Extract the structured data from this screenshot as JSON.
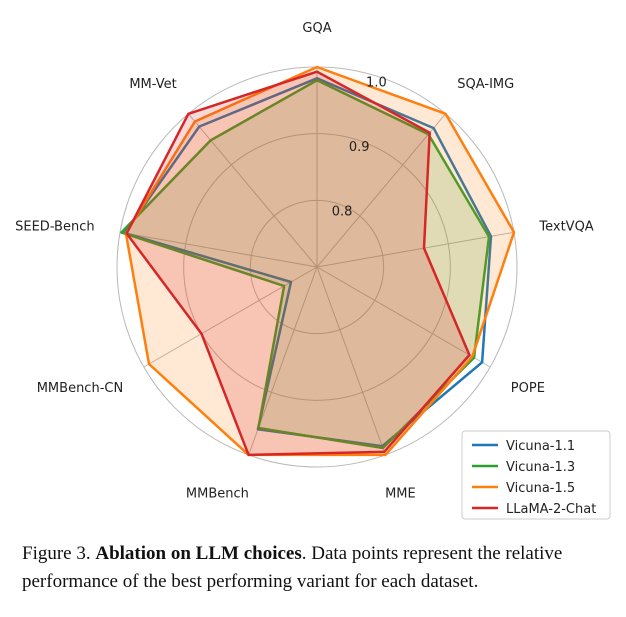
{
  "chart_data": {
    "type": "radar",
    "axes": [
      "GQA",
      "SQA-IMG",
      "TextVQA",
      "POPE",
      "MME",
      "MMBench",
      "MMBench-CN",
      "SEED-Bench",
      "MM-Vet"
    ],
    "rlim": [
      0.7,
      1.0
    ],
    "ticks": [
      "0.8",
      "0.9",
      "1.0"
    ],
    "tick_values": [
      0.8,
      0.9,
      1.0
    ],
    "grid": true,
    "legend_position": "lower-right",
    "series": [
      {
        "name": "Vicuna-1.1",
        "color": "#1f77b4",
        "values": [
          0.983,
          0.972,
          0.965,
          0.986,
          0.986,
          0.959,
          0.745,
          0.993,
          0.975
        ],
        "fill": false
      },
      {
        "name": "Vicuna-1.3",
        "color": "#2ca02c",
        "values": [
          0.98,
          0.96,
          0.962,
          0.972,
          0.989,
          0.957,
          0.757,
          0.998,
          0.948
        ],
        "fill": true
      },
      {
        "name": "Vicuna-1.5",
        "color": "#ff7f0e",
        "values": [
          1.0,
          1.0,
          1.0,
          0.969,
          1.0,
          1.0,
          0.991,
          0.991,
          0.985
        ],
        "fill": true
      },
      {
        "name": "LLaMA-2-Chat",
        "color": "#d62728",
        "values": [
          0.993,
          0.963,
          0.863,
          0.964,
          0.995,
          1.0,
          0.9,
          0.99,
          1.0
        ],
        "fill": true
      }
    ]
  },
  "caption": {
    "prefix": "Figure 3. ",
    "bold": "Ablation on LLM choices",
    "rest": ". Data points represent the relative performance of the best performing variant for each dataset."
  }
}
